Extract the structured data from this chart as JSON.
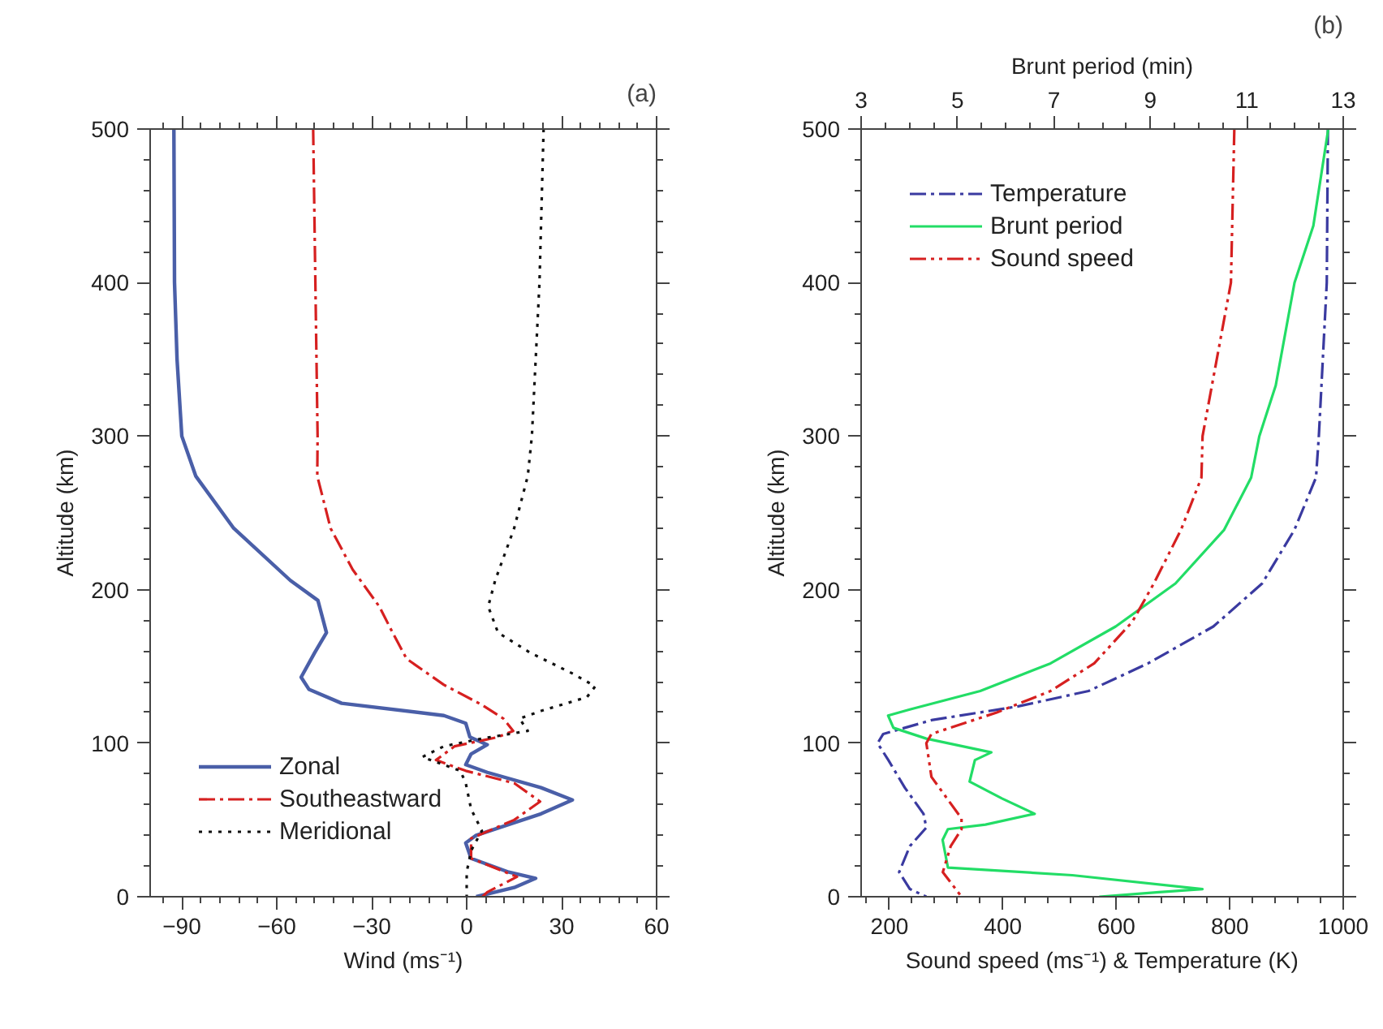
{
  "chart_data": [
    {
      "type": "line",
      "title": "(a)",
      "xlabel": "Wind (ms⁻¹)",
      "ylabel": "Altitude (km)",
      "xlim": [
        -100,
        60
      ],
      "xticks": [
        -90,
        -60,
        -30,
        0,
        30,
        60
      ],
      "ylim": [
        0,
        500
      ],
      "yticks": [
        0,
        100,
        200,
        300,
        400,
        500
      ],
      "grid": false,
      "legend": "bottom left",
      "marker": "none",
      "series": [
        {
          "name": "Zonal",
          "color": "#4a5fa8",
          "line_style": "solid",
          "x": [
            -92.5,
            -92.3,
            -91.5,
            -90,
            -85.6,
            -73.6,
            -55.7,
            -47,
            -44.3,
            -48,
            -52.3,
            -49.8,
            -39.5,
            -7.2,
            -0.3,
            1,
            6.5,
            1.4,
            -0.3,
            6.5,
            23.5,
            33.4,
            23.5,
            3,
            -0.3,
            1.4,
            13.3,
            21.8,
            15,
            3
          ],
          "values": [
            500,
            400,
            350,
            300,
            274,
            240,
            206,
            193,
            172,
            159,
            143,
            135,
            126,
            118,
            113,
            104,
            99,
            93,
            86,
            81,
            71,
            63,
            54,
            40,
            35,
            25,
            16,
            12,
            6,
            0
          ]
        },
        {
          "name": "Southeastward",
          "color": "#d62020",
          "line_style": "dashdot",
          "x": [
            -48.5,
            -47.1,
            -47.2,
            -43,
            -36,
            -27.6,
            -23.4,
            -19,
            -7.2,
            4.8,
            11.6,
            14.7,
            9.9,
            -3.8,
            -9.7,
            -0.3,
            15,
            23.2,
            15,
            1.4,
            1.4,
            15.9,
            6.5,
            5
          ],
          "values": [
            500,
            300,
            274,
            240,
            213,
            189,
            172,
            155,
            138,
            125,
            116,
            108,
            104,
            98,
            89,
            82,
            74,
            62,
            50,
            38,
            25,
            13,
            3,
            0
          ]
        },
        {
          "name": "Meridional",
          "color": "#111111",
          "line_style": "dotted",
          "x": [
            24.3,
            23,
            20.6,
            19.3,
            15,
            9,
            6.8,
            9.9,
            20,
            33.8,
            40.6,
            38,
            23.5,
            16.7,
            19.3,
            4.8,
            -7.2,
            -14,
            -2,
            -0.3,
            1.4,
            4.8,
            1.4,
            0,
            0
          ],
          "values": [
            500,
            400,
            300,
            274,
            240,
            206,
            189,
            172,
            159,
            145,
            137,
            130,
            121,
            116,
            108,
            103,
            98,
            91,
            82,
            74,
            57,
            43,
            30,
            16,
            0
          ]
        }
      ]
    },
    {
      "type": "line",
      "title": "(b)",
      "xlabel": "Sound speed (ms⁻¹) & Temperature (K)",
      "x2label": "Brunt period (min)",
      "ylabel": "Altitude (km)",
      "xlim": [
        150,
        1000
      ],
      "xticks": [
        200,
        400,
        600,
        800,
        1000
      ],
      "x2lim": [
        3,
        13
      ],
      "x2ticks": [
        3,
        5,
        7,
        9,
        11,
        13
      ],
      "ylim": [
        0,
        500
      ],
      "yticks": [
        0,
        100,
        200,
        300,
        400,
        500
      ],
      "grid": false,
      "legend": "top left",
      "marker": "none",
      "series": [
        {
          "name": "Temperature",
          "color": "#3a3aa0",
          "line_style": "dashdot",
          "x": [
            973,
            971,
            957,
            952,
            914,
            857,
            771,
            656,
            551,
            427,
            274,
            189,
            179,
            198,
            227,
            260,
            265,
            236,
            217,
            236,
            265
          ],
          "values": [
            500,
            400,
            300,
            273,
            239,
            204,
            176,
            152,
            134,
            124,
            115,
            106,
            100,
            89,
            71,
            54,
            45,
            33,
            16,
            5,
            0
          ]
        },
        {
          "name": "Brunt period",
          "color": "#22dd66",
          "line_style": "solid",
          "axis": "x2",
          "x": [
            12.69,
            12.38,
            11.99,
            11.6,
            11.26,
            11.09,
            10.53,
            9.52,
            8.28,
            6.93,
            5.47,
            4.01,
            3.56,
            3.67,
            4.35,
            5.7,
            5.36,
            5.25,
            5.92,
            6.6,
            5.58,
            4.8,
            4.69,
            4.8,
            7.38,
            10.08,
            9.18,
            7.94
          ],
          "values": [
            500,
            437,
            400,
            333,
            300,
            273,
            239,
            204,
            176,
            152,
            134,
            122,
            118,
            110,
            103,
            94,
            89,
            75,
            64,
            54,
            47,
            44,
            37,
            19,
            14,
            5,
            3,
            0
          ]
        },
        {
          "name": "Sound speed",
          "color": "#d62020",
          "line_style": "dashdotdot",
          "x": [
            808,
            802,
            752,
            750,
            714,
            666,
            628,
            561,
            484,
            389,
            274,
            265,
            274,
            327,
            327,
            308,
            294,
            327
          ],
          "values": [
            500,
            400,
            300,
            273,
            239,
            204,
            179,
            152,
            134,
            120,
            106,
            100,
            78,
            51,
            44,
            33,
            16,
            0
          ]
        }
      ]
    }
  ]
}
